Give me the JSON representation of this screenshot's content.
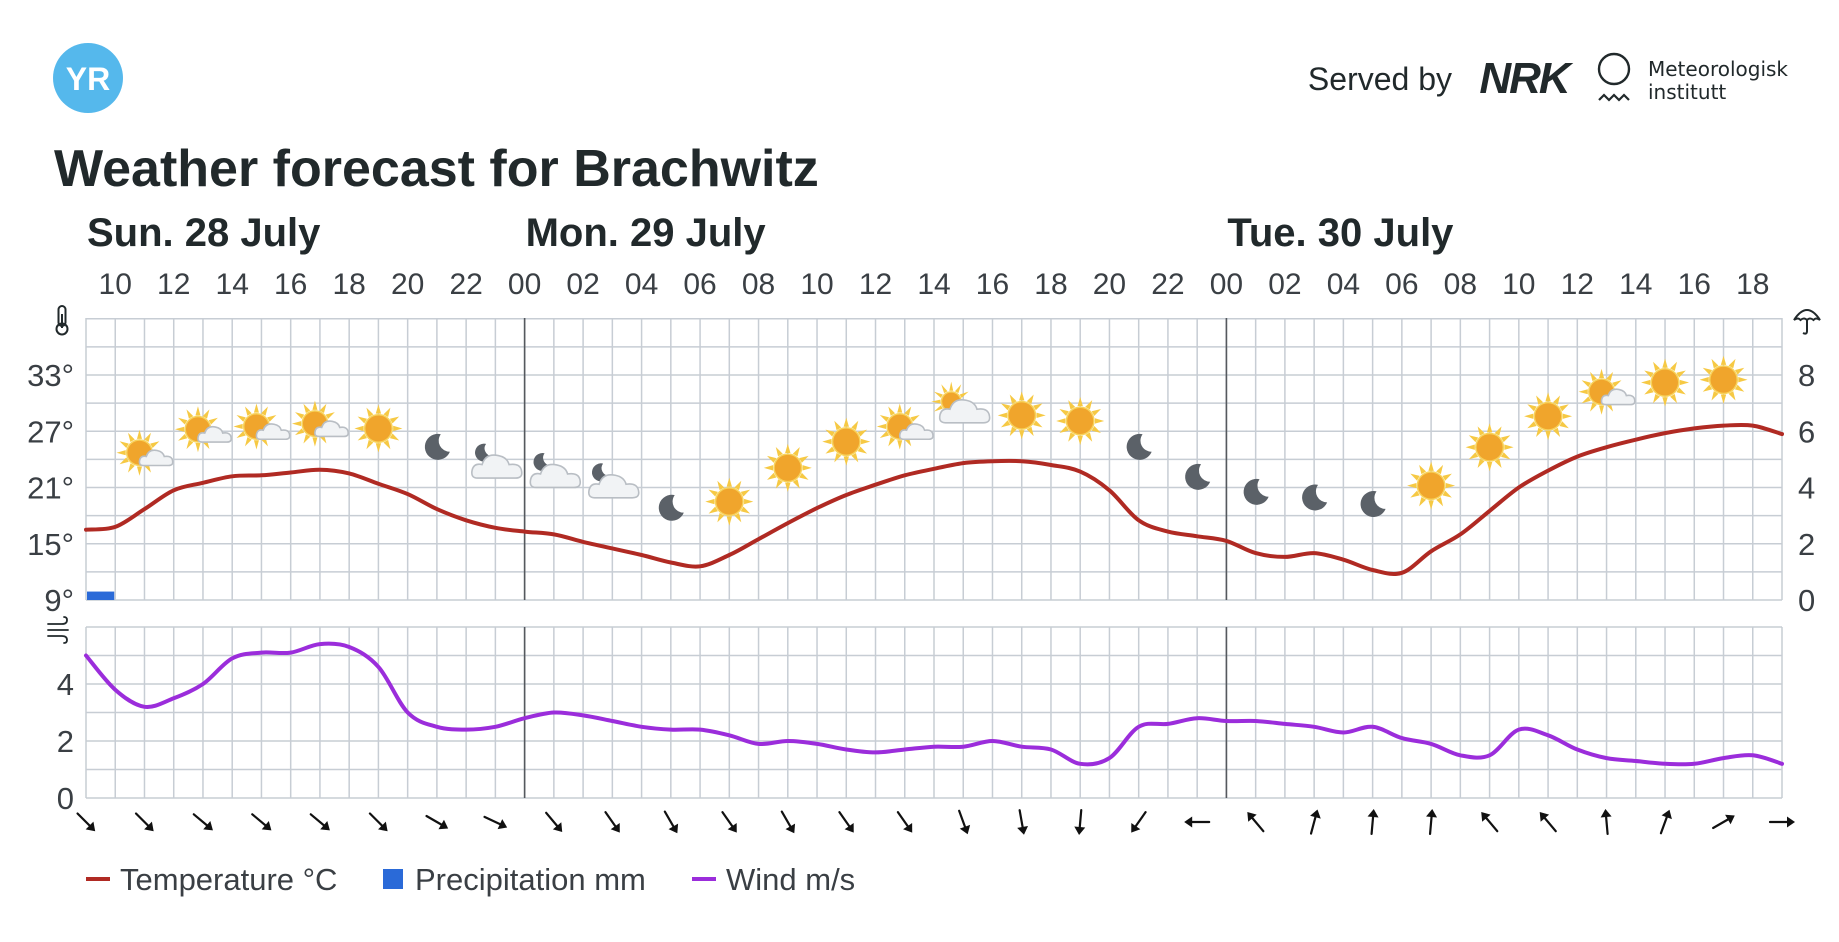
{
  "header": {
    "logo_text": "YR",
    "served_by": "Served by",
    "partner_nrk": "NRK",
    "partner_met_line1": "Meteorologisk",
    "partner_met_line2": "institutt",
    "colors": {
      "yr_blue": "#55b8ec"
    }
  },
  "title": "Weather forecast for Brachwitz",
  "legend": [
    {
      "label": "Temperature °C",
      "color": "#b02a23"
    },
    {
      "label": "Precipitation mm",
      "color": "#2a6ad8"
    },
    {
      "label": "Wind m/s",
      "color": "#9b2ddb"
    }
  ],
  "icons": {
    "left_top_axis": "thermometer-icon",
    "right_top_axis": "umbrella-icon",
    "left_bottom_axis": "wind-icon"
  },
  "chart_data": {
    "type": "line",
    "start_hour": 9,
    "end_hour": 67,
    "day_labels": [
      {
        "label": "Sun. 28 July",
        "hour": 9
      },
      {
        "label": "Mon. 29 July",
        "hour": 24
      },
      {
        "label": "Tue. 30 July",
        "hour": 48
      }
    ],
    "day_boundaries": [
      24,
      48
    ],
    "hour_ticks": [
      {
        "h": 10,
        "label": "10"
      },
      {
        "h": 12,
        "label": "12"
      },
      {
        "h": 14,
        "label": "14"
      },
      {
        "h": 16,
        "label": "16"
      },
      {
        "h": 18,
        "label": "18"
      },
      {
        "h": 20,
        "label": "20"
      },
      {
        "h": 22,
        "label": "22"
      },
      {
        "h": 24,
        "label": "00"
      },
      {
        "h": 26,
        "label": "02"
      },
      {
        "h": 28,
        "label": "04"
      },
      {
        "h": 30,
        "label": "06"
      },
      {
        "h": 32,
        "label": "08"
      },
      {
        "h": 34,
        "label": "10"
      },
      {
        "h": 36,
        "label": "12"
      },
      {
        "h": 38,
        "label": "14"
      },
      {
        "h": 40,
        "label": "16"
      },
      {
        "h": 42,
        "label": "18"
      },
      {
        "h": 44,
        "label": "20"
      },
      {
        "h": 46,
        "label": "22"
      },
      {
        "h": 48,
        "label": "00"
      },
      {
        "h": 50,
        "label": "02"
      },
      {
        "h": 52,
        "label": "04"
      },
      {
        "h": 54,
        "label": "06"
      },
      {
        "h": 56,
        "label": "08"
      },
      {
        "h": 58,
        "label": "10"
      },
      {
        "h": 60,
        "label": "12"
      },
      {
        "h": 62,
        "label": "14"
      },
      {
        "h": 64,
        "label": "16"
      },
      {
        "h": 66,
        "label": "18"
      }
    ],
    "temperature": {
      "name": "Temperature °C",
      "color": "#b02a23",
      "y_range": [
        9,
        39
      ],
      "y_ticks": [
        {
          "v": 9,
          "label": "9°"
        },
        {
          "v": 15,
          "label": "15°"
        },
        {
          "v": 21,
          "label": "21°"
        },
        {
          "v": 27,
          "label": "27°"
        },
        {
          "v": 33,
          "label": "33°"
        }
      ],
      "points": [
        [
          9,
          16.5
        ],
        [
          10,
          16.8
        ],
        [
          11,
          18.7
        ],
        [
          12,
          20.7
        ],
        [
          13,
          21.5
        ],
        [
          14,
          22.2
        ],
        [
          15,
          22.3
        ],
        [
          16,
          22.6
        ],
        [
          17,
          22.9
        ],
        [
          18,
          22.5
        ],
        [
          19,
          21.4
        ],
        [
          20,
          20.3
        ],
        [
          21,
          18.7
        ],
        [
          22,
          17.5
        ],
        [
          23,
          16.7
        ],
        [
          24,
          16.3
        ],
        [
          25,
          16.0
        ],
        [
          26,
          15.2
        ],
        [
          27,
          14.5
        ],
        [
          28,
          13.8
        ],
        [
          29,
          13.0
        ],
        [
          30,
          12.6
        ],
        [
          31,
          13.8
        ],
        [
          32,
          15.5
        ],
        [
          33,
          17.2
        ],
        [
          34,
          18.8
        ],
        [
          35,
          20.2
        ],
        [
          36,
          21.3
        ],
        [
          37,
          22.3
        ],
        [
          38,
          23.0
        ],
        [
          39,
          23.6
        ],
        [
          40,
          23.8
        ],
        [
          41,
          23.8
        ],
        [
          42,
          23.4
        ],
        [
          43,
          22.7
        ],
        [
          44,
          20.7
        ],
        [
          45,
          17.5
        ],
        [
          46,
          16.3
        ],
        [
          47,
          15.8
        ],
        [
          48,
          15.3
        ],
        [
          49,
          14.0
        ],
        [
          50,
          13.6
        ],
        [
          51,
          14.0
        ],
        [
          52,
          13.3
        ],
        [
          53,
          12.2
        ],
        [
          54,
          11.9
        ],
        [
          55,
          14.2
        ],
        [
          56,
          16.0
        ],
        [
          57,
          18.5
        ],
        [
          58,
          21.0
        ],
        [
          59,
          22.8
        ],
        [
          60,
          24.3
        ],
        [
          61,
          25.3
        ],
        [
          62,
          26.1
        ],
        [
          63,
          26.8
        ],
        [
          64,
          27.3
        ],
        [
          65,
          27.6
        ],
        [
          66,
          27.6
        ],
        [
          67,
          26.7
        ]
      ]
    },
    "precipitation": {
      "name": "Precipitation mm",
      "color": "#2a6ad8",
      "y_range": [
        0,
        10
      ],
      "y_ticks": [
        {
          "v": 0,
          "label": "0"
        },
        {
          "v": 2,
          "label": "2"
        },
        {
          "v": 4,
          "label": "4"
        },
        {
          "v": 6,
          "label": "6"
        },
        {
          "v": 8,
          "label": "8"
        }
      ],
      "bars": [
        {
          "hour": 9,
          "value": 0.3
        }
      ]
    },
    "wind": {
      "name": "Wind m/s",
      "color": "#9b2ddb",
      "y_range": [
        0,
        6
      ],
      "y_ticks": [
        {
          "v": 0,
          "label": "0"
        },
        {
          "v": 2,
          "label": "2"
        },
        {
          "v": 4,
          "label": "4"
        }
      ],
      "points": [
        [
          9,
          5.0
        ],
        [
          10,
          3.8
        ],
        [
          11,
          3.2
        ],
        [
          12,
          3.5
        ],
        [
          13,
          4.0
        ],
        [
          14,
          4.9
        ],
        [
          15,
          5.1
        ],
        [
          16,
          5.1
        ],
        [
          17,
          5.4
        ],
        [
          18,
          5.3
        ],
        [
          19,
          4.6
        ],
        [
          20,
          3.0
        ],
        [
          21,
          2.5
        ],
        [
          22,
          2.4
        ],
        [
          23,
          2.5
        ],
        [
          24,
          2.8
        ],
        [
          25,
          3.0
        ],
        [
          26,
          2.9
        ],
        [
          27,
          2.7
        ],
        [
          28,
          2.5
        ],
        [
          29,
          2.4
        ],
        [
          30,
          2.4
        ],
        [
          31,
          2.2
        ],
        [
          32,
          1.9
        ],
        [
          33,
          2.0
        ],
        [
          34,
          1.9
        ],
        [
          35,
          1.7
        ],
        [
          36,
          1.6
        ],
        [
          37,
          1.7
        ],
        [
          38,
          1.8
        ],
        [
          39,
          1.8
        ],
        [
          40,
          2.0
        ],
        [
          41,
          1.8
        ],
        [
          42,
          1.7
        ],
        [
          43,
          1.2
        ],
        [
          44,
          1.4
        ],
        [
          45,
          2.5
        ],
        [
          46,
          2.6
        ],
        [
          47,
          2.8
        ],
        [
          48,
          2.7
        ],
        [
          49,
          2.7
        ],
        [
          50,
          2.6
        ],
        [
          51,
          2.5
        ],
        [
          52,
          2.3
        ],
        [
          53,
          2.5
        ],
        [
          54,
          2.1
        ],
        [
          55,
          1.9
        ],
        [
          56,
          1.5
        ],
        [
          57,
          1.5
        ],
        [
          58,
          2.4
        ],
        [
          59,
          2.2
        ],
        [
          60,
          1.7
        ],
        [
          61,
          1.4
        ],
        [
          62,
          1.3
        ],
        [
          63,
          1.2
        ],
        [
          64,
          1.2
        ],
        [
          65,
          1.4
        ],
        [
          66,
          1.5
        ],
        [
          67,
          1.2
        ]
      ]
    },
    "wind_directions": [
      {
        "h": 9,
        "deg": 135
      },
      {
        "h": 11,
        "deg": 135
      },
      {
        "h": 13,
        "deg": 130
      },
      {
        "h": 15,
        "deg": 130
      },
      {
        "h": 17,
        "deg": 130
      },
      {
        "h": 19,
        "deg": 135
      },
      {
        "h": 21,
        "deg": 120
      },
      {
        "h": 23,
        "deg": 115
      },
      {
        "h": 25,
        "deg": 140
      },
      {
        "h": 27,
        "deg": 145
      },
      {
        "h": 29,
        "deg": 150
      },
      {
        "h": 31,
        "deg": 145
      },
      {
        "h": 33,
        "deg": 150
      },
      {
        "h": 35,
        "deg": 145
      },
      {
        "h": 37,
        "deg": 145
      },
      {
        "h": 39,
        "deg": 160
      },
      {
        "h": 41,
        "deg": 170
      },
      {
        "h": 43,
        "deg": 185
      },
      {
        "h": 45,
        "deg": 215
      },
      {
        "h": 47,
        "deg": 270
      },
      {
        "h": 49,
        "deg": 320
      },
      {
        "h": 51,
        "deg": 15
      },
      {
        "h": 53,
        "deg": 5
      },
      {
        "h": 55,
        "deg": 5
      },
      {
        "h": 57,
        "deg": 320
      },
      {
        "h": 59,
        "deg": 320
      },
      {
        "h": 61,
        "deg": 355
      },
      {
        "h": 63,
        "deg": 20
      },
      {
        "h": 65,
        "deg": 60
      },
      {
        "h": 67,
        "deg": 90
      }
    ],
    "symbols": [
      {
        "h": 11,
        "temp": 24.5,
        "type": "partly-cloudy-day"
      },
      {
        "h": 13,
        "temp": 27,
        "type": "partly-cloudy-day"
      },
      {
        "h": 15,
        "temp": 27.3,
        "type": "partly-cloudy-day"
      },
      {
        "h": 17,
        "temp": 27.6,
        "type": "partly-cloudy-day"
      },
      {
        "h": 19,
        "temp": 27.3,
        "type": "clear-day"
      },
      {
        "h": 21,
        "temp": 25.3,
        "type": "clear-night"
      },
      {
        "h": 23,
        "temp": 23.2,
        "type": "partly-cloudy-night"
      },
      {
        "h": 25,
        "temp": 22.2,
        "type": "partly-cloudy-night"
      },
      {
        "h": 27,
        "temp": 21.1,
        "type": "partly-cloudy-night"
      },
      {
        "h": 29,
        "temp": 18.8,
        "type": "clear-night"
      },
      {
        "h": 31,
        "temp": 19.5,
        "type": "clear-day"
      },
      {
        "h": 33,
        "temp": 23.1,
        "type": "clear-day"
      },
      {
        "h": 35,
        "temp": 25.9,
        "type": "clear-day"
      },
      {
        "h": 37,
        "temp": 27.3,
        "type": "partly-cloudy-day"
      },
      {
        "h": 39,
        "temp": 29.1,
        "type": "cloudy-sun"
      },
      {
        "h": 41,
        "temp": 28.7,
        "type": "clear-day"
      },
      {
        "h": 43,
        "temp": 28.1,
        "type": "clear-day"
      },
      {
        "h": 45,
        "temp": 25.3,
        "type": "clear-night"
      },
      {
        "h": 47,
        "temp": 22.1,
        "type": "clear-night"
      },
      {
        "h": 49,
        "temp": 20.5,
        "type": "clear-night"
      },
      {
        "h": 51,
        "temp": 19.9,
        "type": "clear-night"
      },
      {
        "h": 53,
        "temp": 19.2,
        "type": "clear-night"
      },
      {
        "h": 55,
        "temp": 21.2,
        "type": "clear-day"
      },
      {
        "h": 57,
        "temp": 25.3,
        "type": "clear-day"
      },
      {
        "h": 59,
        "temp": 28.6,
        "type": "clear-day"
      },
      {
        "h": 61,
        "temp": 31,
        "type": "partly-cloudy-day"
      },
      {
        "h": 63,
        "temp": 32.2,
        "type": "clear-day"
      },
      {
        "h": 65,
        "temp": 32.5,
        "type": "clear-day"
      }
    ]
  }
}
